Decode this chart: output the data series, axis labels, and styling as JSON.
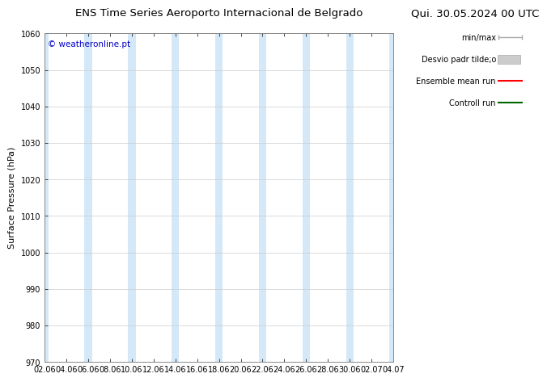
{
  "title_left": "ENS Time Series Aeroporto Internacional de Belgrado",
  "title_right": "Qui. 30.05.2024 00 UTC",
  "ylabel": "Surface Pressure (hPa)",
  "ylim": [
    970,
    1060
  ],
  "yticks": [
    970,
    980,
    990,
    1000,
    1010,
    1020,
    1030,
    1040,
    1050,
    1060
  ],
  "x_labels": [
    "02.06",
    "04.06",
    "06.06",
    "08.06",
    "10.06",
    "12.06",
    "14.06",
    "16.06",
    "18.06",
    "20.06",
    "22.06",
    "24.06",
    "26.06",
    "28.06",
    "30.06",
    "02.07",
    "04.07"
  ],
  "watermark": "© weatheronline.pt",
  "watermark_color": "#0000cc",
  "band_color": "#d4e8f8",
  "background_color": "#ffffff",
  "legend_minmax_label": "min/max",
  "legend_std_label": "Desvio padr tilde;o",
  "legend_mean_label": "Ensemble mean run",
  "legend_control_label": "Controll run",
  "legend_mean_color": "#ff0000",
  "legend_control_color": "#006600",
  "title_fontsize": 9.5,
  "tick_fontsize": 7,
  "ylabel_fontsize": 8,
  "legend_fontsize": 7
}
